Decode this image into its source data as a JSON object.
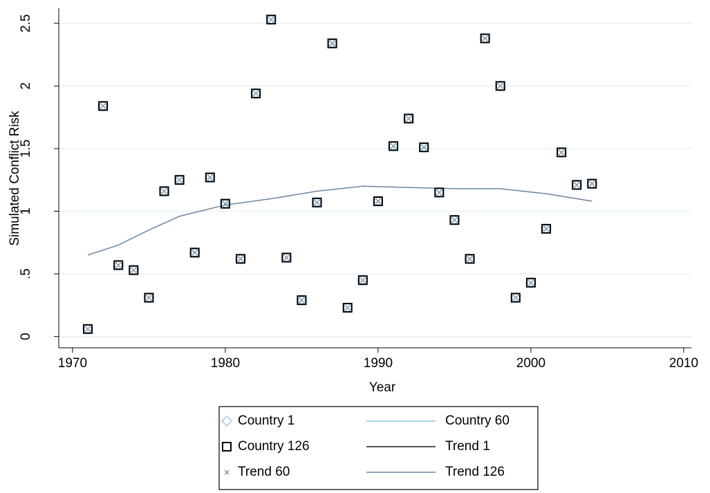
{
  "chart_data": {
    "type": "scatter",
    "x_label": "Year",
    "y_label": "Simulated Conflict Risk",
    "xlim": [
      1969.1,
      2010.5
    ],
    "ylim": [
      -0.09,
      2.62
    ],
    "xticks": [
      1970,
      1980,
      1990,
      2000,
      2010
    ],
    "yticks": [
      0,
      {
        "value": 0.5,
        "label": ".5"
      },
      1,
      1.5,
      2,
      2.5
    ],
    "grid": true,
    "series": [
      {
        "name": "Country 1",
        "marker": "diamond",
        "color": "#8ec4e3",
        "x": [
          1971,
          1972,
          1973,
          1974,
          1975,
          1976,
          1977,
          1978,
          1979,
          1980,
          1981,
          1982,
          1983,
          1984,
          1985,
          1986,
          1987,
          1988,
          1989,
          1990,
          1991,
          1992,
          1993,
          1994,
          1995,
          1996,
          1997,
          1998,
          1999,
          2000,
          2001,
          2002,
          2003,
          2004
        ],
        "values": [
          0.06,
          1.84,
          0.57,
          0.53,
          0.31,
          1.16,
          1.25,
          0.67,
          1.27,
          1.06,
          0.62,
          1.94,
          2.53,
          0.63,
          0.29,
          1.07,
          2.34,
          0.23,
          0.45,
          1.08,
          1.52,
          1.74,
          1.51,
          1.15,
          0.93,
          0.62,
          2.38,
          2.0,
          0.31,
          0.43,
          0.86,
          1.47,
          1.21,
          1.22
        ]
      },
      {
        "name": "Country 60",
        "line": true,
        "color": "#8ec4e3"
      },
      {
        "name": "Country 126",
        "marker": "square",
        "color": "#000000",
        "x": [
          1971,
          1972,
          1973,
          1974,
          1975,
          1976,
          1977,
          1978,
          1979,
          1980,
          1981,
          1982,
          1983,
          1984,
          1985,
          1986,
          1987,
          1988,
          1989,
          1990,
          1991,
          1992,
          1993,
          1994,
          1995,
          1996,
          1997,
          1998,
          1999,
          2000,
          2001,
          2002,
          2003,
          2004
        ],
        "values": [
          0.06,
          1.84,
          0.57,
          0.53,
          0.31,
          1.16,
          1.25,
          0.67,
          1.27,
          1.06,
          0.62,
          1.94,
          2.53,
          0.63,
          0.29,
          1.07,
          2.34,
          0.23,
          0.45,
          1.08,
          1.52,
          1.74,
          1.51,
          1.15,
          0.93,
          0.62,
          2.38,
          2.0,
          0.31,
          0.43,
          0.86,
          1.47,
          1.21,
          1.22
        ]
      },
      {
        "name": "Trend 1",
        "line": true,
        "color": "#1a1a1a"
      },
      {
        "name": "Trend 60",
        "marker": "x",
        "color": "#7a8a99",
        "x": [
          1971,
          1972,
          1973,
          1974,
          1975,
          1976,
          1977,
          1978,
          1979,
          1980,
          1981,
          1982,
          1983,
          1984,
          1985,
          1986,
          1987,
          1988,
          1989,
          1990,
          1991,
          1992,
          1993,
          1994,
          1995,
          1996,
          1997,
          1998,
          1999,
          2000,
          2001,
          2002,
          2003,
          2004
        ],
        "values": [
          0.06,
          1.84,
          0.57,
          0.53,
          0.31,
          1.16,
          1.25,
          0.67,
          1.27,
          1.06,
          0.62,
          1.94,
          2.53,
          0.63,
          0.29,
          1.07,
          2.34,
          0.23,
          0.45,
          1.08,
          1.52,
          1.74,
          1.51,
          1.15,
          0.93,
          0.62,
          2.38,
          2.0,
          0.31,
          0.43,
          0.86,
          1.47,
          1.21,
          1.22
        ]
      },
      {
        "name": "Trend 126",
        "line": true,
        "color": "#6a84a3",
        "x": [
          1971,
          1973,
          1975,
          1977,
          1980,
          1983,
          1986,
          1989,
          1992,
          1995,
          1998,
          2001,
          2004
        ],
        "values": [
          0.65,
          0.73,
          0.85,
          0.96,
          1.05,
          1.1,
          1.16,
          1.2,
          1.19,
          1.18,
          1.18,
          1.14,
          1.08
        ]
      }
    ]
  }
}
